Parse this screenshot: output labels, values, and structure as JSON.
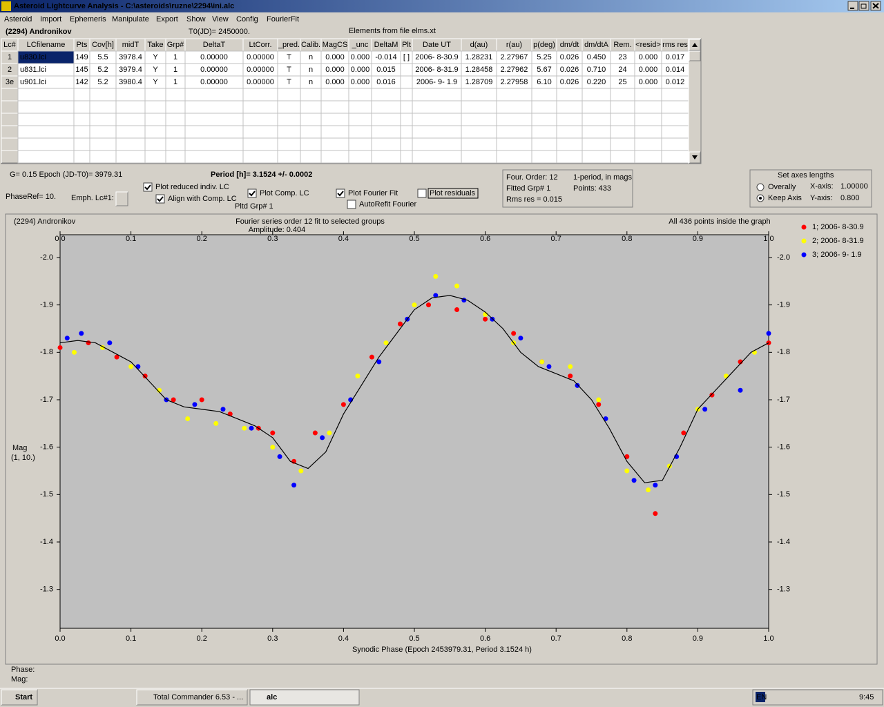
{
  "window": {
    "title": "Asteroid Lightcurve Analysis - C:\\asteroids\\ruzne\\2294\\ini.alc"
  },
  "menu": [
    "Asteroid",
    "Import",
    "Ephemeris",
    "Manipulate",
    "Export",
    "Show",
    "View",
    "Config",
    "FourierFit"
  ],
  "header": {
    "object": "(2294) Andronikov",
    "t0": "T0(JD)= 2450000.",
    "elements": "Elements from file elms.xt"
  },
  "table": {
    "columns": [
      "Lc#",
      "LCfilename",
      "Pts",
      "Cov[h]",
      "midT",
      "Take",
      "Grp#",
      "DeltaT",
      "LtCorr.",
      "_pred.",
      "Calib.",
      "MagCS",
      "_unc",
      "DeltaM",
      "Plt",
      "Date UT",
      "d(au)",
      "r(au)",
      "p(deg)",
      "dm/dt",
      "dm/dtA",
      "Rem.",
      "<resid>",
      "rms res"
    ],
    "rows": [
      [
        "1",
        "u830.lci",
        "149",
        "5.5",
        "3978.4",
        "Y",
        "1",
        "0.00000",
        "0.00000",
        "T",
        "n",
        "0.000",
        "0.000",
        "-0.014",
        "[ ]",
        "2006- 8-30.9",
        "1.28231",
        "2.27967",
        "5.25",
        "0.026",
        "0.450",
        "23",
        "0.000",
        "0.017"
      ],
      [
        "2",
        "u831.lci",
        "145",
        "5.2",
        "3979.4",
        "Y",
        "1",
        "0.00000",
        "0.00000",
        "T",
        "n",
        "0.000",
        "0.000",
        "0.015",
        null,
        "2006- 8-31.9",
        "1.28458",
        "2.27962",
        "5.67",
        "0.026",
        "0.710",
        "24",
        "0.000",
        "0.014"
      ],
      [
        "3e",
        "u901.lci",
        "142",
        "5.2",
        "3980.4",
        "Y",
        "1",
        "0.00000",
        "0.00000",
        "T",
        "n",
        "0.000",
        "0.000",
        "0.016",
        null,
        "2006- 9- 1.9",
        "1.28709",
        "2.27958",
        "6.10",
        "0.026",
        "0.220",
        "25",
        "0.000",
        "0.012"
      ]
    ]
  },
  "controls": {
    "g_epoch": "G= 0.15    Epoch (JD-T0)= 3979.31",
    "period": "Period [h]= 3.1524 +/- 0.0002",
    "phase_ref": "PhaseRef= 10.",
    "emph": "Emph. Lc#1:",
    "checkboxes": [
      {
        "label": "Plot reduced indiv. LC",
        "checked": true
      },
      {
        "label": "Align with Comp. LC",
        "checked": true
      },
      {
        "label": "Plot Comp. LC",
        "checked": true
      },
      {
        "label": "Plot Fourier Fit",
        "checked": true
      },
      {
        "label": "AutoRefit Fourier",
        "checked": false
      },
      {
        "label": "Plot residuals",
        "checked": false
      }
    ],
    "pltd_grp": "Pltd Grp#  1",
    "fit_info": [
      "Four. Order: 12",
      "1-period, in mags",
      "Fitted Grp# 1",
      "Points: 433",
      "Rms res      = 0.015"
    ],
    "axes_box": {
      "title": "Set axes lengths",
      "radios": [
        {
          "label": "Overally",
          "checked": false
        },
        {
          "label": "Keep Axis",
          "checked": true
        }
      ],
      "x_label": "X-axis:",
      "x_value": "1.00000",
      "y_label": "Y-axis:",
      "y_value": "0.800"
    }
  },
  "chart_data": {
    "type": "scatter",
    "object": "(2294) Andronikov",
    "title": "Fourier series order 12 fit to selected groups",
    "subtitle": "Amplitude: 0.404",
    "annotation": "All 436 points inside the graph",
    "x_label": "Synodic Phase (Epoch 2453979.31, Period 3.1524 h)",
    "y_label": "Mag",
    "y_label2": "(1, 10.)",
    "xlim": [
      0,
      1
    ],
    "ylim": [
      -2.048,
      -1.218
    ],
    "y_reversed": true,
    "xticks": [
      {
        "value": 0,
        "label": "0.0"
      },
      0.1,
      0.2,
      0.3,
      0.4,
      0.5,
      0.6,
      0.7,
      0.8,
      0.9,
      {
        "value": 1,
        "label": "1.0"
      }
    ],
    "yticks": [
      {
        "value": -2,
        "label": "-2.0"
      },
      -1.9,
      -1.8,
      -1.7,
      -1.6,
      -1.5,
      -1.4,
      -1.3
    ],
    "series": [
      {
        "name": "1; 2006- 8-30.9",
        "color": "#ff0000",
        "x": [
          0.0,
          0.04,
          0.08,
          0.12,
          0.16,
          0.2,
          0.24,
          0.28,
          0.3,
          0.33,
          0.36,
          0.4,
          0.44,
          0.48,
          0.52,
          0.56,
          0.6,
          0.64,
          0.68,
          0.72,
          0.76,
          0.8,
          0.84,
          0.88,
          0.92,
          0.96,
          1.0
        ],
        "values": [
          -1.81,
          -1.82,
          -1.79,
          -1.75,
          -1.7,
          -1.7,
          -1.67,
          -1.64,
          -1.63,
          -1.57,
          -1.63,
          -1.69,
          -1.79,
          -1.86,
          -1.9,
          -1.89,
          -1.87,
          -1.84,
          -1.78,
          -1.75,
          -1.69,
          -1.58,
          -1.46,
          -1.63,
          -1.71,
          -1.78,
          -1.82
        ]
      },
      {
        "name": "2; 2006- 8-31.9",
        "color": "#ffff00",
        "x": [
          0.02,
          0.06,
          0.1,
          0.14,
          0.18,
          0.22,
          0.26,
          0.3,
          0.34,
          0.38,
          0.42,
          0.46,
          0.5,
          0.53,
          0.56,
          0.6,
          0.64,
          0.68,
          0.72,
          0.76,
          0.8,
          0.83,
          0.86,
          0.9,
          0.94,
          0.98
        ],
        "values": [
          -1.8,
          -1.81,
          -1.77,
          -1.72,
          -1.66,
          -1.65,
          -1.64,
          -1.6,
          -1.55,
          -1.63,
          -1.75,
          -1.82,
          -1.9,
          -1.96,
          -1.94,
          -1.88,
          -1.82,
          -1.78,
          -1.77,
          -1.7,
          -1.55,
          -1.51,
          -1.56,
          -1.68,
          -1.75,
          -1.8
        ]
      },
      {
        "name": "3; 2006- 9- 1.9",
        "color": "#0000ff",
        "x": [
          0.01,
          0.03,
          0.07,
          0.11,
          0.15,
          0.19,
          0.23,
          0.27,
          0.31,
          0.33,
          0.37,
          0.41,
          0.45,
          0.49,
          0.53,
          0.57,
          0.61,
          0.65,
          0.69,
          0.73,
          0.77,
          0.81,
          0.84,
          0.87,
          0.91,
          0.96,
          1.0
        ],
        "values": [
          -1.83,
          -1.84,
          -1.82,
          -1.77,
          -1.7,
          -1.69,
          -1.68,
          -1.64,
          -1.58,
          -1.52,
          -1.62,
          -1.7,
          -1.78,
          -1.87,
          -1.92,
          -1.91,
          -1.87,
          -1.83,
          -1.77,
          -1.73,
          -1.66,
          -1.53,
          -1.52,
          -1.58,
          -1.68,
          -1.72,
          -1.84
        ]
      }
    ],
    "fit_curve": {
      "color": "#000000",
      "x": [
        0,
        0.025,
        0.05,
        0.075,
        0.1,
        0.125,
        0.15,
        0.175,
        0.2,
        0.225,
        0.25,
        0.275,
        0.3,
        0.325,
        0.35,
        0.375,
        0.4,
        0.425,
        0.45,
        0.475,
        0.5,
        0.525,
        0.55,
        0.575,
        0.6,
        0.625,
        0.65,
        0.675,
        0.7,
        0.725,
        0.75,
        0.775,
        0.8,
        0.825,
        0.85,
        0.875,
        0.9,
        0.925,
        0.95,
        0.975,
        1
      ],
      "values": [
        -1.82,
        -1.825,
        -1.82,
        -1.8,
        -1.78,
        -1.74,
        -1.7,
        -1.685,
        -1.68,
        -1.675,
        -1.66,
        -1.645,
        -1.62,
        -1.57,
        -1.555,
        -1.59,
        -1.67,
        -1.73,
        -1.79,
        -1.84,
        -1.89,
        -1.915,
        -1.92,
        -1.91,
        -1.885,
        -1.85,
        -1.8,
        -1.77,
        -1.755,
        -1.74,
        -1.7,
        -1.64,
        -1.57,
        -1.525,
        -1.53,
        -1.6,
        -1.68,
        -1.72,
        -1.76,
        -1.8,
        -1.82
      ]
    },
    "legend": "top-right"
  },
  "status": {
    "phase": "Phase:",
    "mag": "Mag:"
  },
  "taskbar": {
    "start": "Start",
    "tasks": [
      "Total Commander 6.53 - ...",
      "alc"
    ],
    "lang": "EN",
    "clock": "9:45"
  }
}
